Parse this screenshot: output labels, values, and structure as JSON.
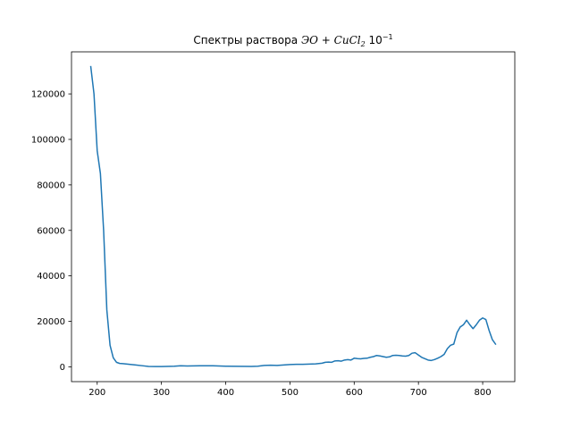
{
  "chart_data": {
    "type": "line",
    "title": {
      "prefix": "Спектры раствора ",
      "formula_a": "ЭО",
      "plus": " + ",
      "formula_b": "CuCl",
      "formula_sub": "2",
      "suffix_base": " 10",
      "suffix_exp": "−1"
    },
    "xlabel": "",
    "ylabel": "",
    "xlim": [
      160,
      850
    ],
    "ylim": [
      -6500,
      138500
    ],
    "xticks": [
      200,
      300,
      400,
      500,
      600,
      700,
      800
    ],
    "yticks": [
      0,
      20000,
      40000,
      60000,
      80000,
      100000,
      120000
    ],
    "grid": false,
    "color": "#1f77b4",
    "series": [
      {
        "x": [
          190,
          195,
          200,
          205,
          210,
          215,
          220,
          225,
          230,
          235,
          240,
          250,
          260,
          270,
          280,
          290,
          300,
          320,
          330,
          340,
          360,
          380,
          400,
          420,
          440,
          450,
          460,
          470,
          480,
          490,
          500,
          510,
          520,
          530,
          540,
          550,
          555,
          560,
          565,
          570,
          575,
          580,
          585,
          590,
          595,
          600,
          605,
          610,
          615,
          620,
          625,
          630,
          635,
          640,
          645,
          650,
          655,
          660,
          665,
          670,
          675,
          680,
          685,
          690,
          695,
          700,
          705,
          710,
          715,
          720,
          725,
          730,
          735,
          740,
          745,
          750,
          755,
          760,
          765,
          770,
          775,
          780,
          785,
          790,
          795,
          800,
          805,
          810,
          815,
          820
        ],
        "y": [
          132000,
          120000,
          95000,
          85000,
          60000,
          25000,
          9500,
          4000,
          2000,
          1500,
          1400,
          1100,
          800,
          500,
          200,
          150,
          150,
          300,
          500,
          400,
          500,
          500,
          300,
          250,
          200,
          300,
          600,
          700,
          600,
          800,
          1000,
          1100,
          1100,
          1200,
          1300,
          1600,
          2000,
          2100,
          2000,
          2600,
          2700,
          2500,
          3000,
          3200,
          3000,
          3800,
          3600,
          3500,
          3700,
          3800,
          4200,
          4500,
          5000,
          4800,
          4500,
          4200,
          4400,
          5000,
          5100,
          5000,
          4800,
          4700,
          5000,
          6000,
          6200,
          5200,
          4200,
          3600,
          3000,
          2800,
          3200,
          3800,
          4500,
          5500,
          8000,
          9500,
          10000,
          15000,
          17500,
          18500,
          20500,
          18500,
          16800,
          18500,
          20500,
          21500,
          20800,
          16000,
          12000,
          10000
        ]
      }
    ]
  }
}
